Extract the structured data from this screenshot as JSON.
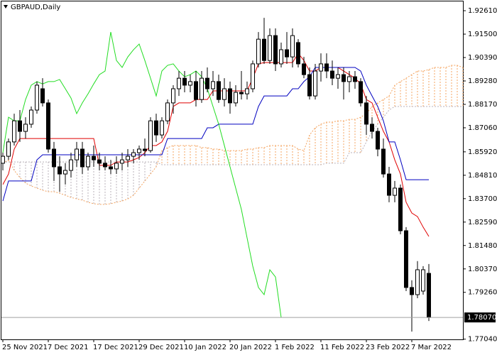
{
  "chart_data": {
    "type": "candlestick",
    "title": "GBPAUD,Daily",
    "categories": [
      "25 Nov 2021",
      null,
      null,
      null,
      null,
      null,
      null,
      null,
      "7 Dec 2021",
      null,
      null,
      null,
      null,
      null,
      null,
      null,
      "17 Dec 2021",
      null,
      null,
      null,
      null,
      null,
      null,
      null,
      "29 Dec 2021",
      null,
      null,
      null,
      null,
      null,
      null,
      null,
      "10 Jan 2022",
      null,
      null,
      null,
      null,
      null,
      null,
      null,
      "20 Jan 2022",
      null,
      null,
      null,
      null,
      null,
      null,
      null,
      "1 Feb 2022",
      null,
      null,
      null,
      null,
      null,
      null,
      null,
      "11 Feb 2022",
      null,
      null,
      null,
      null,
      null,
      null,
      null,
      "23 Feb 2022",
      null,
      null,
      null,
      null,
      null,
      null,
      null,
      "7 Mar 2022",
      null,
      null,
      null,
      null,
      null,
      null,
      null,
      null,
      null
    ],
    "open": [
      1.8538,
      1.8571,
      1.8639,
      1.8739,
      1.8689,
      1.8723,
      1.879,
      1.8891,
      1.8824,
      1.8605,
      1.8521,
      1.8487,
      1.8504,
      1.8554,
      1.8605,
      1.8521,
      1.8571,
      1.8554,
      1.8538,
      1.8521,
      1.8511,
      1.8538,
      1.8554,
      1.8571,
      1.8588,
      1.8605,
      1.8598,
      1.8739,
      1.8672,
      1.8739,
      1.8824,
      1.8891,
      1.8941,
      1.8908,
      1.8925,
      1.884,
      1.8941,
      1.8891,
      1.8925,
      1.884,
      1.8891,
      1.8824,
      1.8874,
      1.8867,
      1.8891,
      1.9009,
      1.9126,
      1.9025,
      1.9143,
      1.9009,
      1.9076,
      1.9042,
      1.911,
      1.9009,
      1.8958,
      1.8857,
      1.8975,
      1.9009,
      1.8975,
      1.8941,
      1.8958,
      1.8925,
      1.8948,
      1.8925,
      1.8824,
      1.8723,
      1.8689,
      1.8605,
      1.8487,
      1.8386,
      1.842,
      1.8218,
      1.7949,
      1.7915,
      1.7932,
      1.8016,
      null,
      null,
      null,
      null,
      null,
      null
    ],
    "high": [
      1.8588,
      1.8655,
      1.8773,
      1.879,
      1.8756,
      1.8807,
      1.8925,
      1.8941,
      1.884,
      1.8639,
      1.8571,
      1.8538,
      1.8588,
      1.8639,
      1.8639,
      1.8588,
      1.8622,
      1.8588,
      1.8571,
      1.8554,
      1.8571,
      1.8588,
      1.8605,
      1.8605,
      1.8622,
      1.8655,
      1.8756,
      1.8773,
      1.8756,
      1.884,
      1.8908,
      1.8975,
      1.8975,
      1.8958,
      1.8975,
      1.8975,
      1.8992,
      1.8975,
      1.8958,
      1.8941,
      1.8925,
      1.8908,
      1.8975,
      1.8925,
      1.9025,
      1.916,
      1.9227,
      1.9177,
      1.9177,
      1.911,
      1.916,
      1.9177,
      1.9126,
      1.9042,
      1.8992,
      1.9009,
      1.9059,
      1.9059,
      1.9025,
      1.8992,
      1.8992,
      1.8975,
      1.8975,
      1.8941,
      1.8857,
      1.8756,
      1.8706,
      1.8655,
      1.8521,
      1.8454,
      1.8437,
      1.8235,
      1.7983,
      1.8074,
      1.805,
      1.806,
      null,
      null,
      null,
      null,
      null,
      null
    ],
    "low": [
      1.8504,
      1.8554,
      1.8622,
      1.8639,
      1.8655,
      1.8706,
      1.8773,
      1.8807,
      1.8588,
      1.8454,
      1.8403,
      1.8437,
      1.847,
      1.8521,
      1.8487,
      1.8504,
      1.8521,
      1.8504,
      1.8504,
      1.8487,
      1.8487,
      1.8504,
      1.8521,
      1.8538,
      1.8554,
      1.8571,
      1.8588,
      1.8639,
      1.8655,
      1.8723,
      1.8773,
      1.8857,
      1.8874,
      1.8874,
      1.8807,
      1.8824,
      1.8874,
      1.8857,
      1.8824,
      1.8807,
      1.8773,
      1.8807,
      1.884,
      1.884,
      1.8874,
      1.8992,
      1.9009,
      1.9009,
      1.8975,
      1.8992,
      1.9009,
      1.8992,
      1.8992,
      1.8941,
      1.884,
      1.884,
      1.8925,
      1.8941,
      1.8908,
      1.8891,
      1.884,
      1.8874,
      1.8891,
      1.8807,
      1.8672,
      1.8655,
      1.8571,
      1.847,
      1.8353,
      1.8353,
      1.8201,
      1.7932,
      1.774,
      1.7898,
      1.7915,
      1.779,
      null,
      null,
      null,
      null,
      null,
      null
    ],
    "close": [
      1.8571,
      1.8639,
      1.8739,
      1.8689,
      1.8723,
      1.879,
      1.8908,
      1.8824,
      1.8605,
      1.8521,
      1.8487,
      1.8504,
      1.8554,
      1.8605,
      1.8521,
      1.8571,
      1.8554,
      1.8538,
      1.8521,
      1.8511,
      1.8538,
      1.8554,
      1.8571,
      1.8588,
      1.8605,
      1.8598,
      1.8739,
      1.8672,
      1.8739,
      1.8824,
      1.8891,
      1.8941,
      1.8908,
      1.8925,
      1.884,
      1.8941,
      1.8891,
      1.8925,
      1.884,
      1.8891,
      1.8824,
      1.8874,
      1.8867,
      1.8891,
      1.9009,
      1.9126,
      1.9025,
      1.9143,
      1.9009,
      1.9076,
      1.9042,
      1.9143,
      1.9009,
      1.8958,
      1.8857,
      1.8975,
      1.9009,
      1.8975,
      1.8941,
      1.8958,
      1.8925,
      1.8948,
      1.8925,
      1.8824,
      1.8723,
      1.8689,
      1.8605,
      1.8487,
      1.8386,
      1.842,
      1.8218,
      1.7949,
      1.7915,
      1.8033,
      1.8033,
      1.7807,
      null,
      null,
      null,
      null,
      null,
      null
    ],
    "bull_color": "#ffffff",
    "bear_color": "#000000",
    "lines": [
      {
        "color": "#e00000",
        "values": [
          1.8437,
          1.8487,
          1.8605,
          1.8655,
          1.8655,
          1.8655,
          1.8655,
          1.8655,
          1.8655,
          1.8655,
          1.8655,
          1.8655,
          1.8655,
          1.8655,
          1.8655,
          1.8655,
          1.8655,
          1.8528,
          1.8528,
          1.8528,
          1.8544,
          1.8544,
          1.8544,
          1.8554,
          1.8565,
          1.8588,
          1.8622,
          1.8622,
          1.8639,
          1.8689,
          1.8807,
          1.8824,
          1.8824,
          1.8824,
          1.884,
          1.884,
          1.884,
          1.8881,
          1.8881,
          1.8881,
          1.8881,
          1.8881,
          1.8881,
          1.8881,
          1.8941,
          1.9009,
          1.9015,
          1.9015,
          1.9015,
          1.9015,
          1.9015,
          1.9015,
          1.9059,
          1.9025,
          1.8975,
          1.8975,
          1.8992,
          1.8992,
          1.8992,
          1.8992,
          1.8975,
          1.8958,
          1.8941,
          1.8914,
          1.884,
          1.8824,
          1.8756,
          1.8689,
          1.8639,
          1.8554,
          1.8487,
          1.8353,
          1.8302,
          1.8285,
          1.8235,
          1.8191,
          null,
          null,
          null,
          null,
          null,
          null
        ]
      },
      {
        "color": "#0000c0",
        "values": [
          1.8359,
          1.8454,
          1.8454,
          1.8454,
          1.8454,
          1.8454,
          1.8554,
          1.8578,
          1.8578,
          1.8578,
          1.8578,
          1.8578,
          1.8578,
          1.8578,
          1.8578,
          1.8578,
          1.8578,
          1.8578,
          1.8578,
          1.8578,
          1.8578,
          1.8578,
          1.8578,
          1.8578,
          1.8578,
          1.8578,
          1.8578,
          1.8578,
          1.8578,
          1.8655,
          1.8655,
          1.8655,
          1.8655,
          1.8655,
          1.8655,
          1.8655,
          1.8706,
          1.8706,
          1.8723,
          1.8723,
          1.8723,
          1.8723,
          1.8723,
          1.8723,
          1.8723,
          1.8807,
          1.8857,
          1.8857,
          1.8857,
          1.8857,
          1.8857,
          1.8891,
          1.8891,
          1.8925,
          1.8948,
          1.8992,
          1.8992,
          1.8992,
          1.8992,
          1.8992,
          1.8992,
          1.8992,
          1.8992,
          1.8975,
          1.8908,
          1.8857,
          1.8807,
          1.8739,
          1.8639,
          1.8639,
          1.8554,
          1.846,
          1.846,
          1.846,
          1.846,
          1.846,
          null,
          null,
          null,
          null,
          null,
          null
        ]
      },
      {
        "color": "#22dd22",
        "values": [
          1.8588,
          1.8756,
          1.8739,
          1.8739,
          1.884,
          1.8908,
          1.8925,
          1.8914,
          1.8925,
          1.8925,
          1.8935,
          1.8891,
          1.8847,
          1.8773,
          1.8824,
          1.8867,
          1.8914,
          1.8958,
          1.8975,
          1.916,
          1.9025,
          1.8992,
          1.9042,
          1.9076,
          1.9103,
          1.9025,
          1.8941,
          1.8857,
          1.8975,
          1.9002,
          1.9009,
          1.8975,
          1.8948,
          1.8958,
          1.8975,
          1.8948,
          1.8891,
          1.8807,
          1.8723,
          1.8622,
          1.8521,
          1.842,
          1.8319,
          1.8184,
          1.805,
          1.7949,
          1.7915,
          1.8033,
          1.7999,
          1.7807,
          null,
          null,
          null,
          null,
          null,
          null,
          null,
          null,
          null,
          null,
          null,
          null,
          null,
          null,
          null,
          null,
          null,
          null,
          null,
          null,
          null,
          null,
          null,
          null,
          null,
          null,
          null,
          null,
          null,
          null,
          null,
          null
        ]
      }
    ],
    "cloud": {
      "span_a": [
        1.8538,
        1.8554,
        1.8504,
        1.847,
        1.8444,
        1.843,
        1.842,
        1.841,
        1.8403,
        1.8403,
        1.8396,
        1.8386,
        1.8376,
        1.8369,
        1.8363,
        1.8353,
        1.8346,
        1.8343,
        1.8343,
        1.8346,
        1.8353,
        1.8359,
        1.8369,
        1.8386,
        1.842,
        1.8454,
        1.8487,
        1.8521,
        1.8598,
        1.8612,
        1.8622,
        1.8622,
        1.8622,
        1.8622,
        1.8622,
        1.8612,
        1.8612,
        1.8605,
        1.8605,
        1.8598,
        1.8598,
        1.8598,
        1.8598,
        1.8605,
        1.8605,
        1.8612,
        1.8612,
        1.8622,
        1.8622,
        1.8622,
        1.8622,
        1.8622,
        1.8605,
        1.8598,
        1.8672,
        1.8706,
        1.8723,
        1.8733,
        1.8733,
        1.8739,
        1.8739,
        1.8746,
        1.8746,
        1.8756,
        1.8773,
        1.8807,
        1.8824,
        1.884,
        1.8857,
        1.8908,
        1.8925,
        1.8941,
        1.8958,
        1.8975,
        1.8975,
        1.8982,
        1.8992,
        1.8992,
        1.8992,
        1.9002,
        1.9002,
        1.8992
      ],
      "span_b": [
        1.8544,
        1.8544,
        1.8544,
        1.8544,
        1.8544,
        1.8544,
        1.8544,
        1.8544,
        1.8544,
        1.8544,
        1.8544,
        1.8544,
        1.8544,
        1.8544,
        1.8544,
        1.8544,
        1.8544,
        1.8544,
        1.8544,
        1.8544,
        1.8544,
        1.8544,
        1.8544,
        1.8544,
        1.8544,
        1.8544,
        1.8544,
        1.8544,
        1.8531,
        1.8531,
        1.8531,
        1.8531,
        1.8531,
        1.8531,
        1.8531,
        1.8531,
        1.8531,
        1.8531,
        1.8531,
        1.8531,
        1.8531,
        1.8531,
        1.8531,
        1.8531,
        1.8531,
        1.8531,
        1.8531,
        1.8531,
        1.8531,
        1.8531,
        1.8531,
        1.8531,
        1.8531,
        1.8531,
        1.8531,
        1.8531,
        1.8531,
        1.8538,
        1.8538,
        1.8538,
        1.8538,
        1.8588,
        1.8588,
        1.8588,
        1.8639,
        1.8689,
        1.8723,
        1.8756,
        1.879,
        1.8807,
        1.8807,
        1.8807,
        1.8807,
        1.8807,
        1.8807,
        1.8807,
        1.8807,
        1.8807,
        1.8807,
        1.8807,
        1.8807,
        1.8807
      ],
      "bull_color": "#f4a460",
      "bear_color": "#b8b0b8"
    },
    "ylim": [
      1.7703,
      1.9305
    ],
    "yticks": [
      {
        "value": 1.9261,
        "label": "1.92610"
      },
      {
        "value": 1.915,
        "label": "1.91500"
      },
      {
        "value": 1.9039,
        "label": "1.90390"
      },
      {
        "value": 1.8928,
        "label": "1.89280"
      },
      {
        "value": 1.8817,
        "label": "1.88170"
      },
      {
        "value": 1.8706,
        "label": "1.87060"
      },
      {
        "value": 1.8592,
        "label": "1.85920"
      },
      {
        "value": 1.8481,
        "label": "1.84810"
      },
      {
        "value": 1.837,
        "label": "1.83700"
      },
      {
        "value": 1.8259,
        "label": "1.82590"
      },
      {
        "value": 1.8148,
        "label": "1.81480"
      },
      {
        "value": 1.8037,
        "label": "1.80370"
      },
      {
        "value": 1.7926,
        "label": "1.79260"
      },
      {
        "value": 1.7704,
        "label": "1.77040"
      }
    ],
    "last_price": {
      "value": 1.7807,
      "label": "1.78070"
    }
  }
}
